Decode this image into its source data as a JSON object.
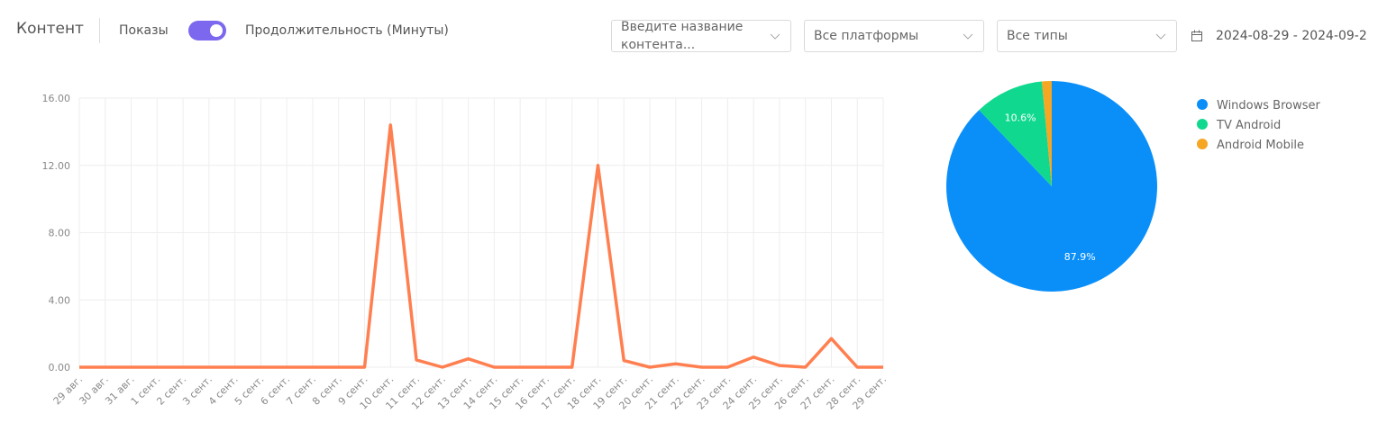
{
  "header": {
    "title": "Контент",
    "toggle_left": "Показы",
    "toggle_right": "Продолжительность (Минуты)",
    "search_placeholder": "Введите название контента...",
    "platform_select": "Все платформы",
    "type_select": "Все типы",
    "date_range": "2024-08-29 - 2024-09-2"
  },
  "chart_data": [
    {
      "type": "line",
      "color": "#ff7f50",
      "grid": true,
      "categories": [
        "29 авг.",
        "30 авг.",
        "31 авг.",
        "1 сент.",
        "2 сент.",
        "3 сент.",
        "4 сент.",
        "5 сент.",
        "6 сент.",
        "7 сент.",
        "8 сент.",
        "9 сент.",
        "10 сент.",
        "11 сент.",
        "12 сент.",
        "13 сент.",
        "14 сент.",
        "15 сент.",
        "16 сент.",
        "17 сент.",
        "18 сент.",
        "19 сент.",
        "20 сент.",
        "21 сент.",
        "22 сент.",
        "23 сент.",
        "24 сент.",
        "25 сент.",
        "26 сент.",
        "27 сент.",
        "28 сент.",
        "29 сент."
      ],
      "values": [
        0,
        0,
        0,
        0,
        0,
        0,
        0,
        0,
        0,
        0,
        0,
        0,
        14.4,
        0.43,
        0,
        0.5,
        0,
        0,
        0,
        0,
        12.0,
        0.4,
        0,
        0.2,
        0,
        0,
        0.6,
        0.1,
        0,
        1.7,
        0,
        0
      ],
      "ylim": [
        0,
        16
      ],
      "yticks": [
        {
          "value": 0,
          "label": "0.00"
        },
        {
          "value": 4,
          "label": "4.00"
        },
        {
          "value": 8,
          "label": "8.00"
        },
        {
          "value": 12,
          "label": "12.00"
        },
        {
          "value": 16,
          "label": "16.00"
        }
      ]
    },
    {
      "type": "pie",
      "legend": "right",
      "categories": [
        "Windows Browser",
        "TV Android",
        "Android Mobile"
      ],
      "values": [
        87.9,
        10.6,
        1.5
      ],
      "value_labels": [
        "87.9%",
        "10.6%",
        null
      ],
      "colors": [
        "#0a8ff9",
        "#10d98f",
        "#f5a623"
      ]
    }
  ]
}
